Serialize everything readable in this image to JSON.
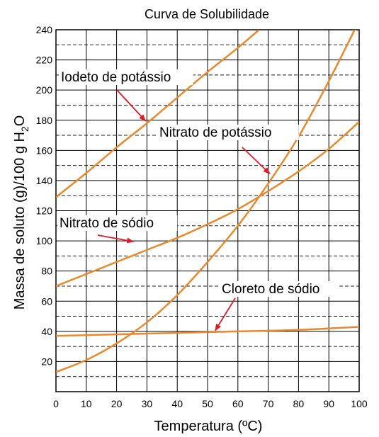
{
  "chart_data": {
    "type": "line",
    "title": "Curva de Solubilidade",
    "xlabel": "Temperatura (ºC)",
    "ylabel": "Massa de soluto (g)/100 g H",
    "ylabel_sub": "2",
    "ylabel_tail": "O",
    "xlim": [
      0,
      100
    ],
    "ylim": [
      0,
      240
    ],
    "x_ticks": [
      "0",
      "10",
      "20",
      "30",
      "40",
      "50",
      "60",
      "70",
      "80",
      "90",
      "100"
    ],
    "y_ticks": [
      "20",
      "40",
      "60",
      "80",
      "100",
      "120",
      "140",
      "160",
      "180",
      "200",
      "220",
      "240"
    ],
    "grid": {
      "vertical_every": 10,
      "horizontal_solid_every": 20,
      "horizontal_dashed_offset": 10
    },
    "line_color": "#e8892b",
    "series": [
      {
        "name": "Iodeto de potássio",
        "x": [
          0,
          10,
          20,
          30,
          40,
          50,
          60,
          67
        ],
        "y": [
          129,
          145,
          162,
          178,
          195,
          212,
          228,
          240
        ]
      },
      {
        "name": "Nitrato de potássio",
        "x": [
          0,
          10,
          20,
          30,
          40,
          50,
          60,
          70,
          80,
          90,
          100
        ],
        "y": [
          13,
          21,
          32,
          46,
          64,
          86,
          110,
          138,
          169,
          206,
          246
        ]
      },
      {
        "name": "Nitrato de sódio",
        "x": [
          0,
          10,
          20,
          30,
          40,
          50,
          60,
          70,
          80,
          90,
          100
        ],
        "y": [
          70,
          78,
          86,
          94,
          102,
          111,
          121,
          133,
          146,
          161,
          179
        ]
      },
      {
        "name": "Cloreto de sódio",
        "x": [
          0,
          20,
          40,
          60,
          80,
          100
        ],
        "y": [
          37,
          38,
          39,
          40,
          41,
          43
        ]
      }
    ],
    "annotations": [
      {
        "text": "Iodeto de potássio",
        "arrow_to": [
          30,
          180
        ]
      },
      {
        "text": "Nitrato de potássio",
        "arrow_to": [
          71,
          145
        ]
      },
      {
        "text": "Nitrato de sódio",
        "arrow_to": [
          26,
          100
        ]
      },
      {
        "text": "Cloreto de sódio",
        "arrow_to": [
          53,
          41
        ]
      }
    ],
    "arrow_color": "#e01b24"
  }
}
